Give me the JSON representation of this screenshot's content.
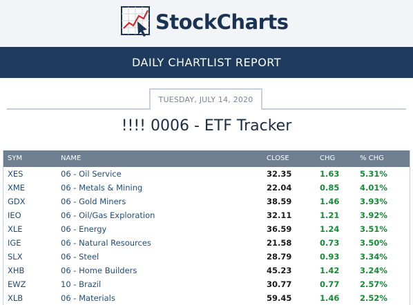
{
  "header": {
    "logo_text": "StockCharts",
    "logo_icon": "stockcharts-logo-icon",
    "banner_title": "DAILY CHARTLIST REPORT"
  },
  "report": {
    "date": "TUESDAY, JULY 14, 2020",
    "list_title": "!!!! 0006 - ETF Tracker"
  },
  "table": {
    "columns": [
      "SYM",
      "NAME",
      "CLOSE",
      "CHG",
      "% CHG"
    ],
    "rows": [
      {
        "sym": "XES",
        "name": "06 - Oil Service",
        "close": "32.35",
        "chg": "1.63",
        "pct": "5.31%"
      },
      {
        "sym": "XME",
        "name": "06 - Metals & Mining",
        "close": "22.04",
        "chg": "0.85",
        "pct": "4.01%"
      },
      {
        "sym": "GDX",
        "name": "06 - Gold Miners",
        "close": "38.59",
        "chg": "1.46",
        "pct": "3.93%"
      },
      {
        "sym": "IEO",
        "name": "06 - Oil/Gas Exploration",
        "close": "32.11",
        "chg": "1.21",
        "pct": "3.92%"
      },
      {
        "sym": "XLE",
        "name": "06 - Energy",
        "close": "36.59",
        "chg": "1.24",
        "pct": "3.51%"
      },
      {
        "sym": "IGE",
        "name": "06 - Natural Resources",
        "close": "21.58",
        "chg": "0.73",
        "pct": "3.50%"
      },
      {
        "sym": "SLX",
        "name": "06 - Steel",
        "close": "28.79",
        "chg": "0.93",
        "pct": "3.34%"
      },
      {
        "sym": "XHB",
        "name": "06 - Home Builders",
        "close": "45.23",
        "chg": "1.42",
        "pct": "3.24%"
      },
      {
        "sym": "EWZ",
        "name": "10 - Brazil",
        "close": "30.77",
        "chg": "0.77",
        "pct": "2.57%"
      },
      {
        "sym": "XLB",
        "name": "06 - Materials",
        "close": "59.45",
        "chg": "1.46",
        "pct": "2.52%"
      }
    ]
  },
  "colors": {
    "banner_bg": "#1e3a5c",
    "table_header_bg": "#6d7f90",
    "link": "#1f4b7a",
    "positive": "#168a35"
  }
}
